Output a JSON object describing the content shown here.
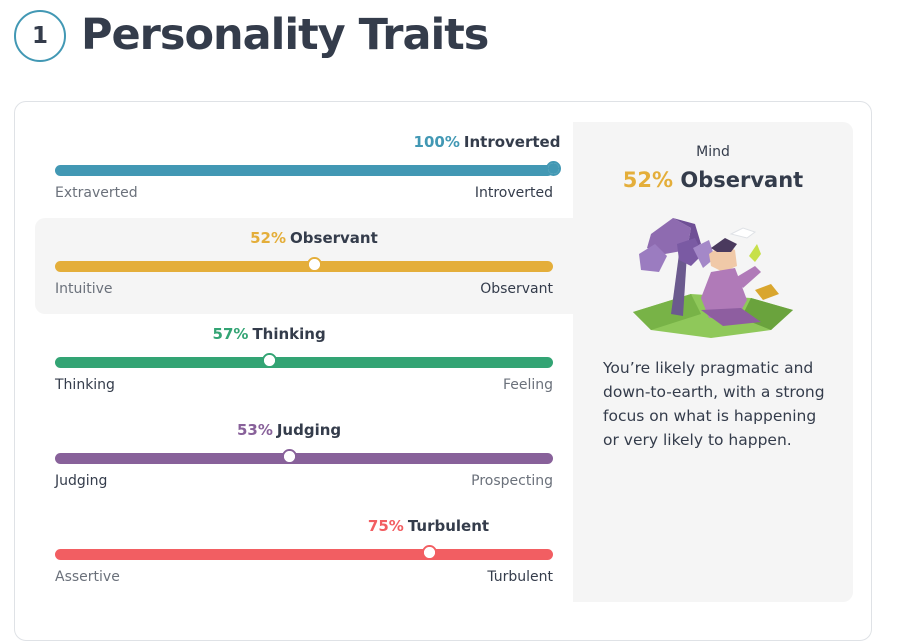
{
  "header": {
    "step_number": "1",
    "title": "Personality Traits"
  },
  "traits": [
    {
      "percent": "100%",
      "percent_value": 100,
      "label": "Introverted",
      "left_label": "Extraverted",
      "right_label": "Introverted",
      "color": "#4298b4",
      "dominant_side": "right",
      "active": false
    },
    {
      "percent": "52%",
      "percent_value": 52,
      "label": "Observant",
      "left_label": "Intuitive",
      "right_label": "Observant",
      "color": "#e4ae3a",
      "dominant_side": "right",
      "active": true
    },
    {
      "percent": "57%",
      "percent_value": 57,
      "label": "Thinking",
      "left_label": "Thinking",
      "right_label": "Feeling",
      "color": "#33a474",
      "dominant_side": "left",
      "active": false
    },
    {
      "percent": "53%",
      "percent_value": 53,
      "label": "Judging",
      "left_label": "Judging",
      "right_label": "Prospecting",
      "color": "#88619a",
      "dominant_side": "left",
      "active": false
    },
    {
      "percent": "75%",
      "percent_value": 75,
      "label": "Turbulent",
      "left_label": "Assertive",
      "right_label": "Turbulent",
      "color": "#f25e62",
      "dominant_side": "right",
      "active": false
    }
  ],
  "detail": {
    "kicker": "Mind",
    "percent": "52%",
    "label": "Observant",
    "description": "You’re likely pragmatic and down-to-earth, with a strong focus on what is happening or very likely to happen."
  }
}
